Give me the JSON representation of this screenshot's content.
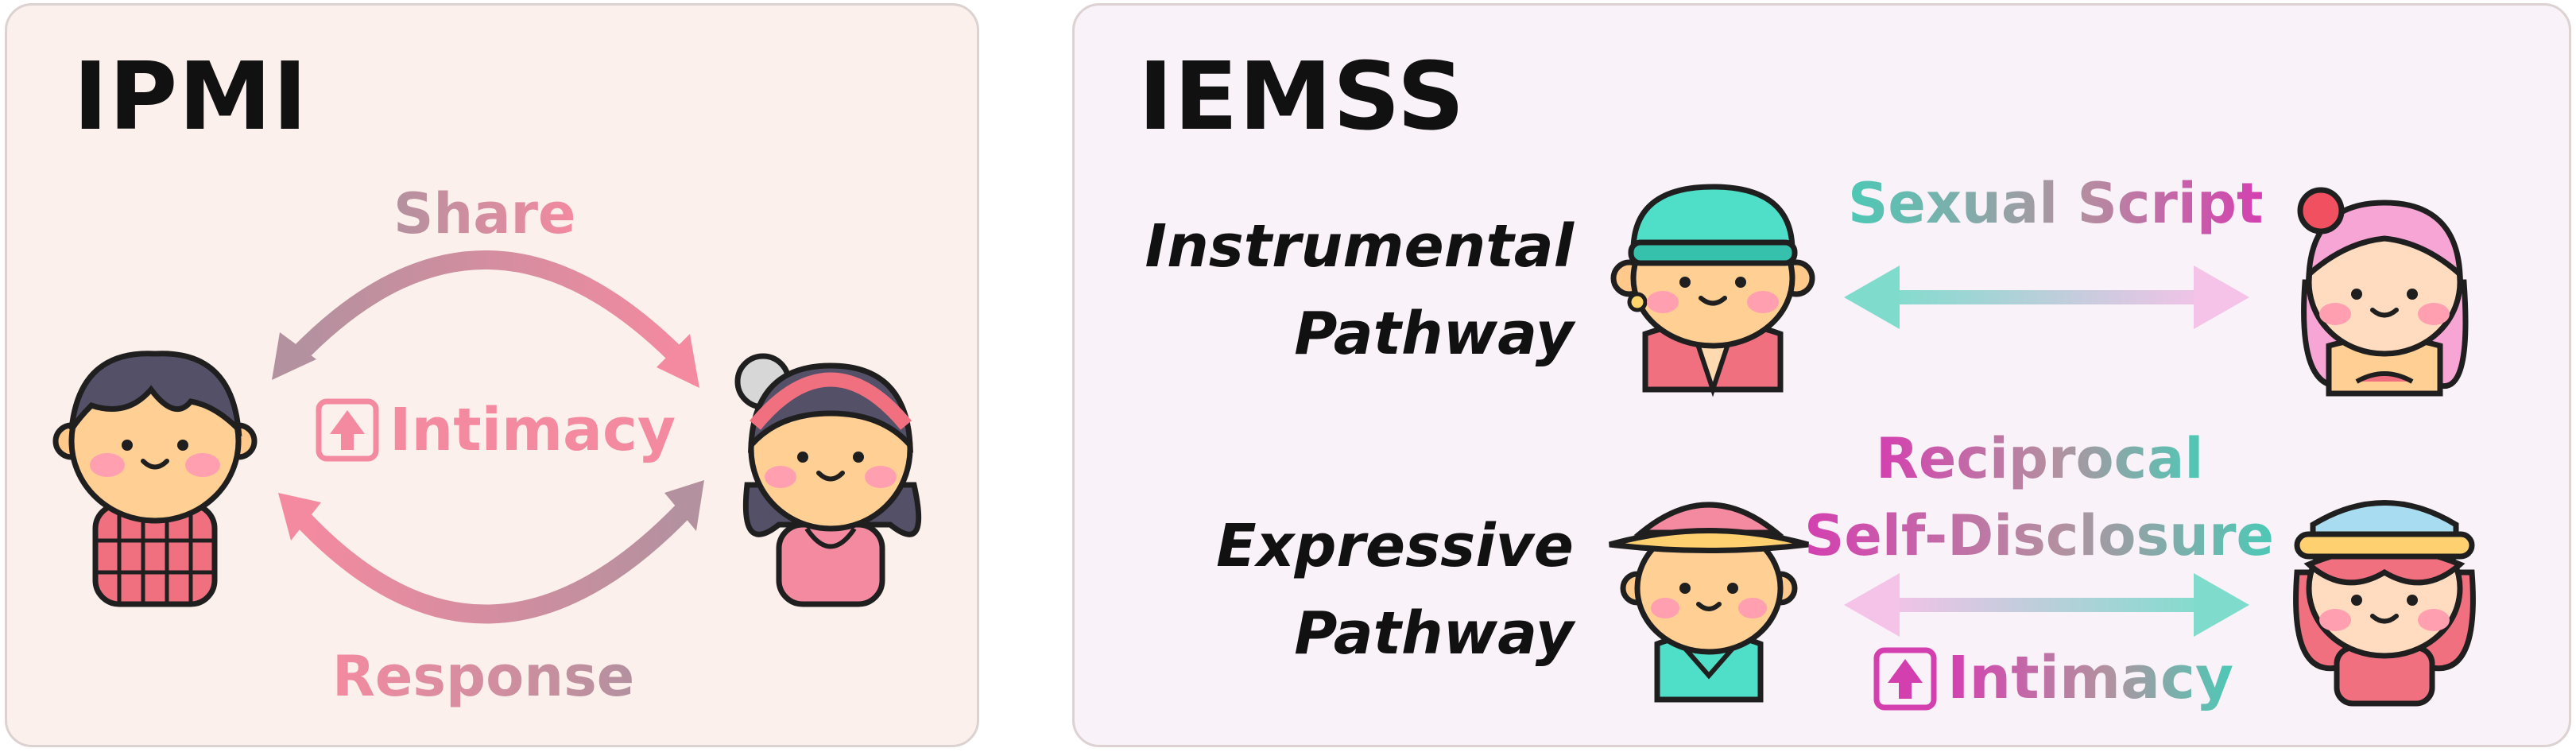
{
  "left_panel": {
    "title": "IPMI",
    "share_label": "Share",
    "response_label": "Response",
    "intimacy_label": "Intimacy",
    "arrow_icon": "up-arrow-box-icon"
  },
  "right_panel": {
    "title": "IEMSS",
    "instrumental_line1": "Instrumental",
    "instrumental_line2": "Pathway",
    "expressive_line1": "Expressive",
    "expressive_line2": "Pathway",
    "sexual_script_label": "Sexual Script",
    "reciprocal_line1": "Reciprocal",
    "reciprocal_line2": "Self-Disclosure",
    "intimacy_label": "Intimacy",
    "arrow_icon": "up-arrow-box-icon"
  },
  "colors": {
    "pink": "#f48aa0",
    "mauve": "#b3919f",
    "teal": "#4cc9b6",
    "magenta": "#d43fb0",
    "light_pink": "#f3c1e6",
    "left_bg": "#fbf0eb",
    "right_bg": "#f9f2f8"
  }
}
